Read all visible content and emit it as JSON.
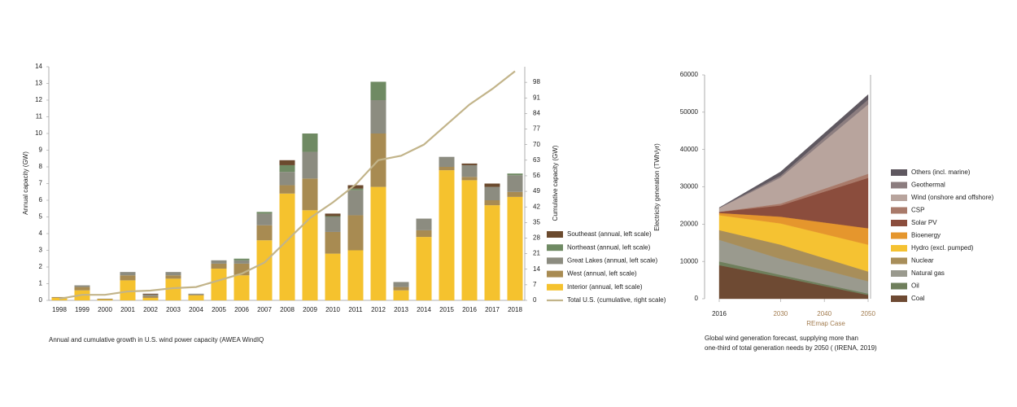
{
  "chart_data": [
    {
      "type": "bar",
      "stacked": true,
      "caption": "Annual and cumulative growth in U.S. wind power capacity (AWEA WindIQ",
      "ylabel": "Annual capacity  (GW)",
      "y2label": "Cumulative capacity (GW)",
      "categories": [
        "1998",
        "1999",
        "2000",
        "2001",
        "2002",
        "2003",
        "2004",
        "2005",
        "2006",
        "2007",
        "2008",
        "2009",
        "2010",
        "2011",
        "2012",
        "2013",
        "2014",
        "2015",
        "2016",
        "2017",
        "2018"
      ],
      "ylim": [
        0,
        14
      ],
      "yticks": [
        0,
        1,
        2,
        3,
        4,
        5,
        6,
        7,
        8,
        9,
        10,
        11,
        12,
        13,
        14
      ],
      "y2lim": [
        0,
        105
      ],
      "y2ticks": [
        0,
        7,
        14,
        21,
        28,
        35,
        42,
        49,
        56,
        63,
        70,
        77,
        84,
        91,
        98
      ],
      "series": [
        {
          "name": "Interior (annual, left scale)",
          "color": "#f5c22e",
          "values": [
            0.15,
            0.6,
            0.05,
            1.2,
            0.15,
            1.3,
            0.3,
            1.9,
            1.5,
            3.6,
            6.4,
            5.4,
            2.8,
            3.0,
            6.8,
            0.6,
            3.8,
            7.8,
            7.2,
            5.7,
            6.2
          ]
        },
        {
          "name": "West (annual, left scale)",
          "color": "#a88b52",
          "values": [
            0.05,
            0.2,
            0.05,
            0.3,
            0.1,
            0.2,
            0.05,
            0.3,
            0.7,
            0.9,
            0.5,
            1.9,
            1.3,
            2.1,
            3.2,
            0.2,
            0.4,
            0.2,
            0.2,
            0.3,
            0.3
          ]
        },
        {
          "name": "Great Lakes (annual, left scale)",
          "color": "#8c8c80",
          "values": [
            0,
            0.1,
            0,
            0.2,
            0.1,
            0.2,
            0.05,
            0.2,
            0.2,
            0.7,
            0.8,
            1.6,
            0.9,
            1.5,
            2.0,
            0.3,
            0.7,
            0.6,
            0.7,
            0.8,
            1.0
          ]
        },
        {
          "name": "Northeast (annual, left scale)",
          "color": "#6f8a63",
          "values": [
            0,
            0,
            0,
            0,
            0,
            0,
            0,
            0,
            0.1,
            0.1,
            0.4,
            1.1,
            0.05,
            0.1,
            1.1,
            0,
            0,
            0,
            0,
            0,
            0.1
          ]
        },
        {
          "name": "Southeast (annual, left scale)",
          "color": "#6b4a2e",
          "values": [
            0,
            0,
            0,
            0,
            0.05,
            0,
            0,
            0,
            0,
            0,
            0.3,
            0,
            0.15,
            0.2,
            0,
            0,
            0,
            0,
            0.1,
            0.2,
            0
          ]
        },
        {
          "name": "Total U.S. (cumulative, right scale)",
          "color": "#c2b48a",
          "axis": "y2",
          "type": "line",
          "values": [
            0.7,
            2.5,
            2.5,
            4,
            4.4,
            5.5,
            6,
            9,
            12,
            17,
            27,
            37,
            44,
            52,
            63,
            65,
            70,
            79,
            88,
            95,
            103
          ]
        }
      ]
    },
    {
      "type": "area",
      "stacked": true,
      "caption": [
        "Global wind generation forecast, supplying more than",
        "one-third of total generation needs by 2050 ( (IRENA, 2019)"
      ],
      "ylabel": "Electricity generation (TWh/yr)",
      "xlabel": "REmap Case",
      "x": [
        2016,
        2030,
        2050
      ],
      "xlim": [
        2016,
        2050
      ],
      "xticks": [
        2016,
        2030,
        2040,
        2050
      ],
      "ylim": [
        0,
        60000
      ],
      "yticks": [
        0,
        10000,
        20000,
        30000,
        40000,
        50000,
        60000
      ],
      "series": [
        {
          "name": "Coal",
          "color": "#6e4a33",
          "values": [
            9000,
            5800,
            1000
          ]
        },
        {
          "name": "Oil",
          "color": "#6f7f5c",
          "values": [
            1000,
            600,
            400
          ]
        },
        {
          "name": "Natural gas",
          "color": "#9a9a8e",
          "values": [
            5800,
            4300,
            3300
          ]
        },
        {
          "name": "Nuclear",
          "color": "#a88e5a",
          "values": [
            2600,
            3800,
            2600
          ]
        },
        {
          "name": "Hydro (excl. pumped)",
          "color": "#f5c232",
          "values": [
            4000,
            5700,
            7200
          ]
        },
        {
          "name": "Bioenergy",
          "color": "#e5962d",
          "values": [
            600,
            1800,
            4400
          ]
        },
        {
          "name": "Solar PV",
          "color": "#8b4d3d",
          "values": [
            300,
            3000,
            13500
          ]
        },
        {
          "name": "CSP",
          "color": "#a97a6a",
          "values": [
            10,
            500,
            1100
          ]
        },
        {
          "name": "Wind (onshore and offshore)",
          "color": "#b8a49d",
          "values": [
            1000,
            7000,
            18600
          ]
        },
        {
          "name": "Geothermal",
          "color": "#8c7d7f",
          "values": [
            90,
            500,
            1300
          ]
        },
        {
          "name": "Others (incl. marine)",
          "color": "#5f5860",
          "values": [
            10,
            1000,
            1300
          ]
        }
      ]
    }
  ]
}
